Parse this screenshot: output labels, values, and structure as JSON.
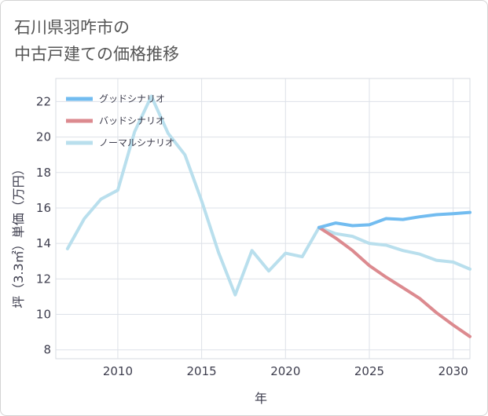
{
  "page": {
    "title_line1": "石川県羽咋市の",
    "title_line2": "中古戸建ての価格推移"
  },
  "chart_data": {
    "type": "line",
    "xlabel": "年",
    "ylabel": "坪（3.3㎡）単価（万円）",
    "xlim": [
      2006.3,
      2031
    ],
    "ylim": [
      7.5,
      23.3
    ],
    "xticks": [
      2010,
      2015,
      2020,
      2025,
      2030
    ],
    "yticks": [
      8,
      10,
      12,
      14,
      16,
      18,
      20,
      22
    ],
    "grid": true,
    "legend_position": "top-left",
    "series": [
      {
        "name": "グッドシナリオ",
        "color": "#72bcf0",
        "x": [
          2022,
          2023,
          2024,
          2025,
          2026,
          2027,
          2028,
          2029,
          2030,
          2031
        ],
        "values": [
          14.9,
          15.15,
          15.0,
          15.05,
          15.4,
          15.35,
          15.5,
          15.62,
          15.68,
          15.75
        ]
      },
      {
        "name": "バッドシナリオ",
        "color": "#dc8a8f",
        "x": [
          2022,
          2023,
          2024,
          2025,
          2026,
          2027,
          2028,
          2029,
          2030,
          2031
        ],
        "values": [
          14.9,
          14.3,
          13.6,
          12.75,
          12.1,
          11.5,
          10.9,
          10.1,
          9.4,
          8.75
        ]
      },
      {
        "name": "ノーマルシナリオ",
        "color": "#b9dfed",
        "x": [
          2007,
          2008,
          2009,
          2010,
          2011,
          2012,
          2013,
          2014,
          2015,
          2016,
          2017,
          2018,
          2019,
          2020,
          2021,
          2022,
          2023,
          2024,
          2025,
          2026,
          2027,
          2028,
          2029,
          2030,
          2031
        ],
        "values": [
          13.7,
          15.4,
          16.5,
          17.0,
          20.3,
          22.3,
          20.2,
          19.0,
          16.4,
          13.5,
          11.1,
          13.6,
          12.45,
          13.45,
          13.25,
          14.9,
          14.55,
          14.4,
          14.0,
          13.9,
          13.6,
          13.4,
          13.05,
          12.95,
          12.55
        ]
      }
    ]
  }
}
